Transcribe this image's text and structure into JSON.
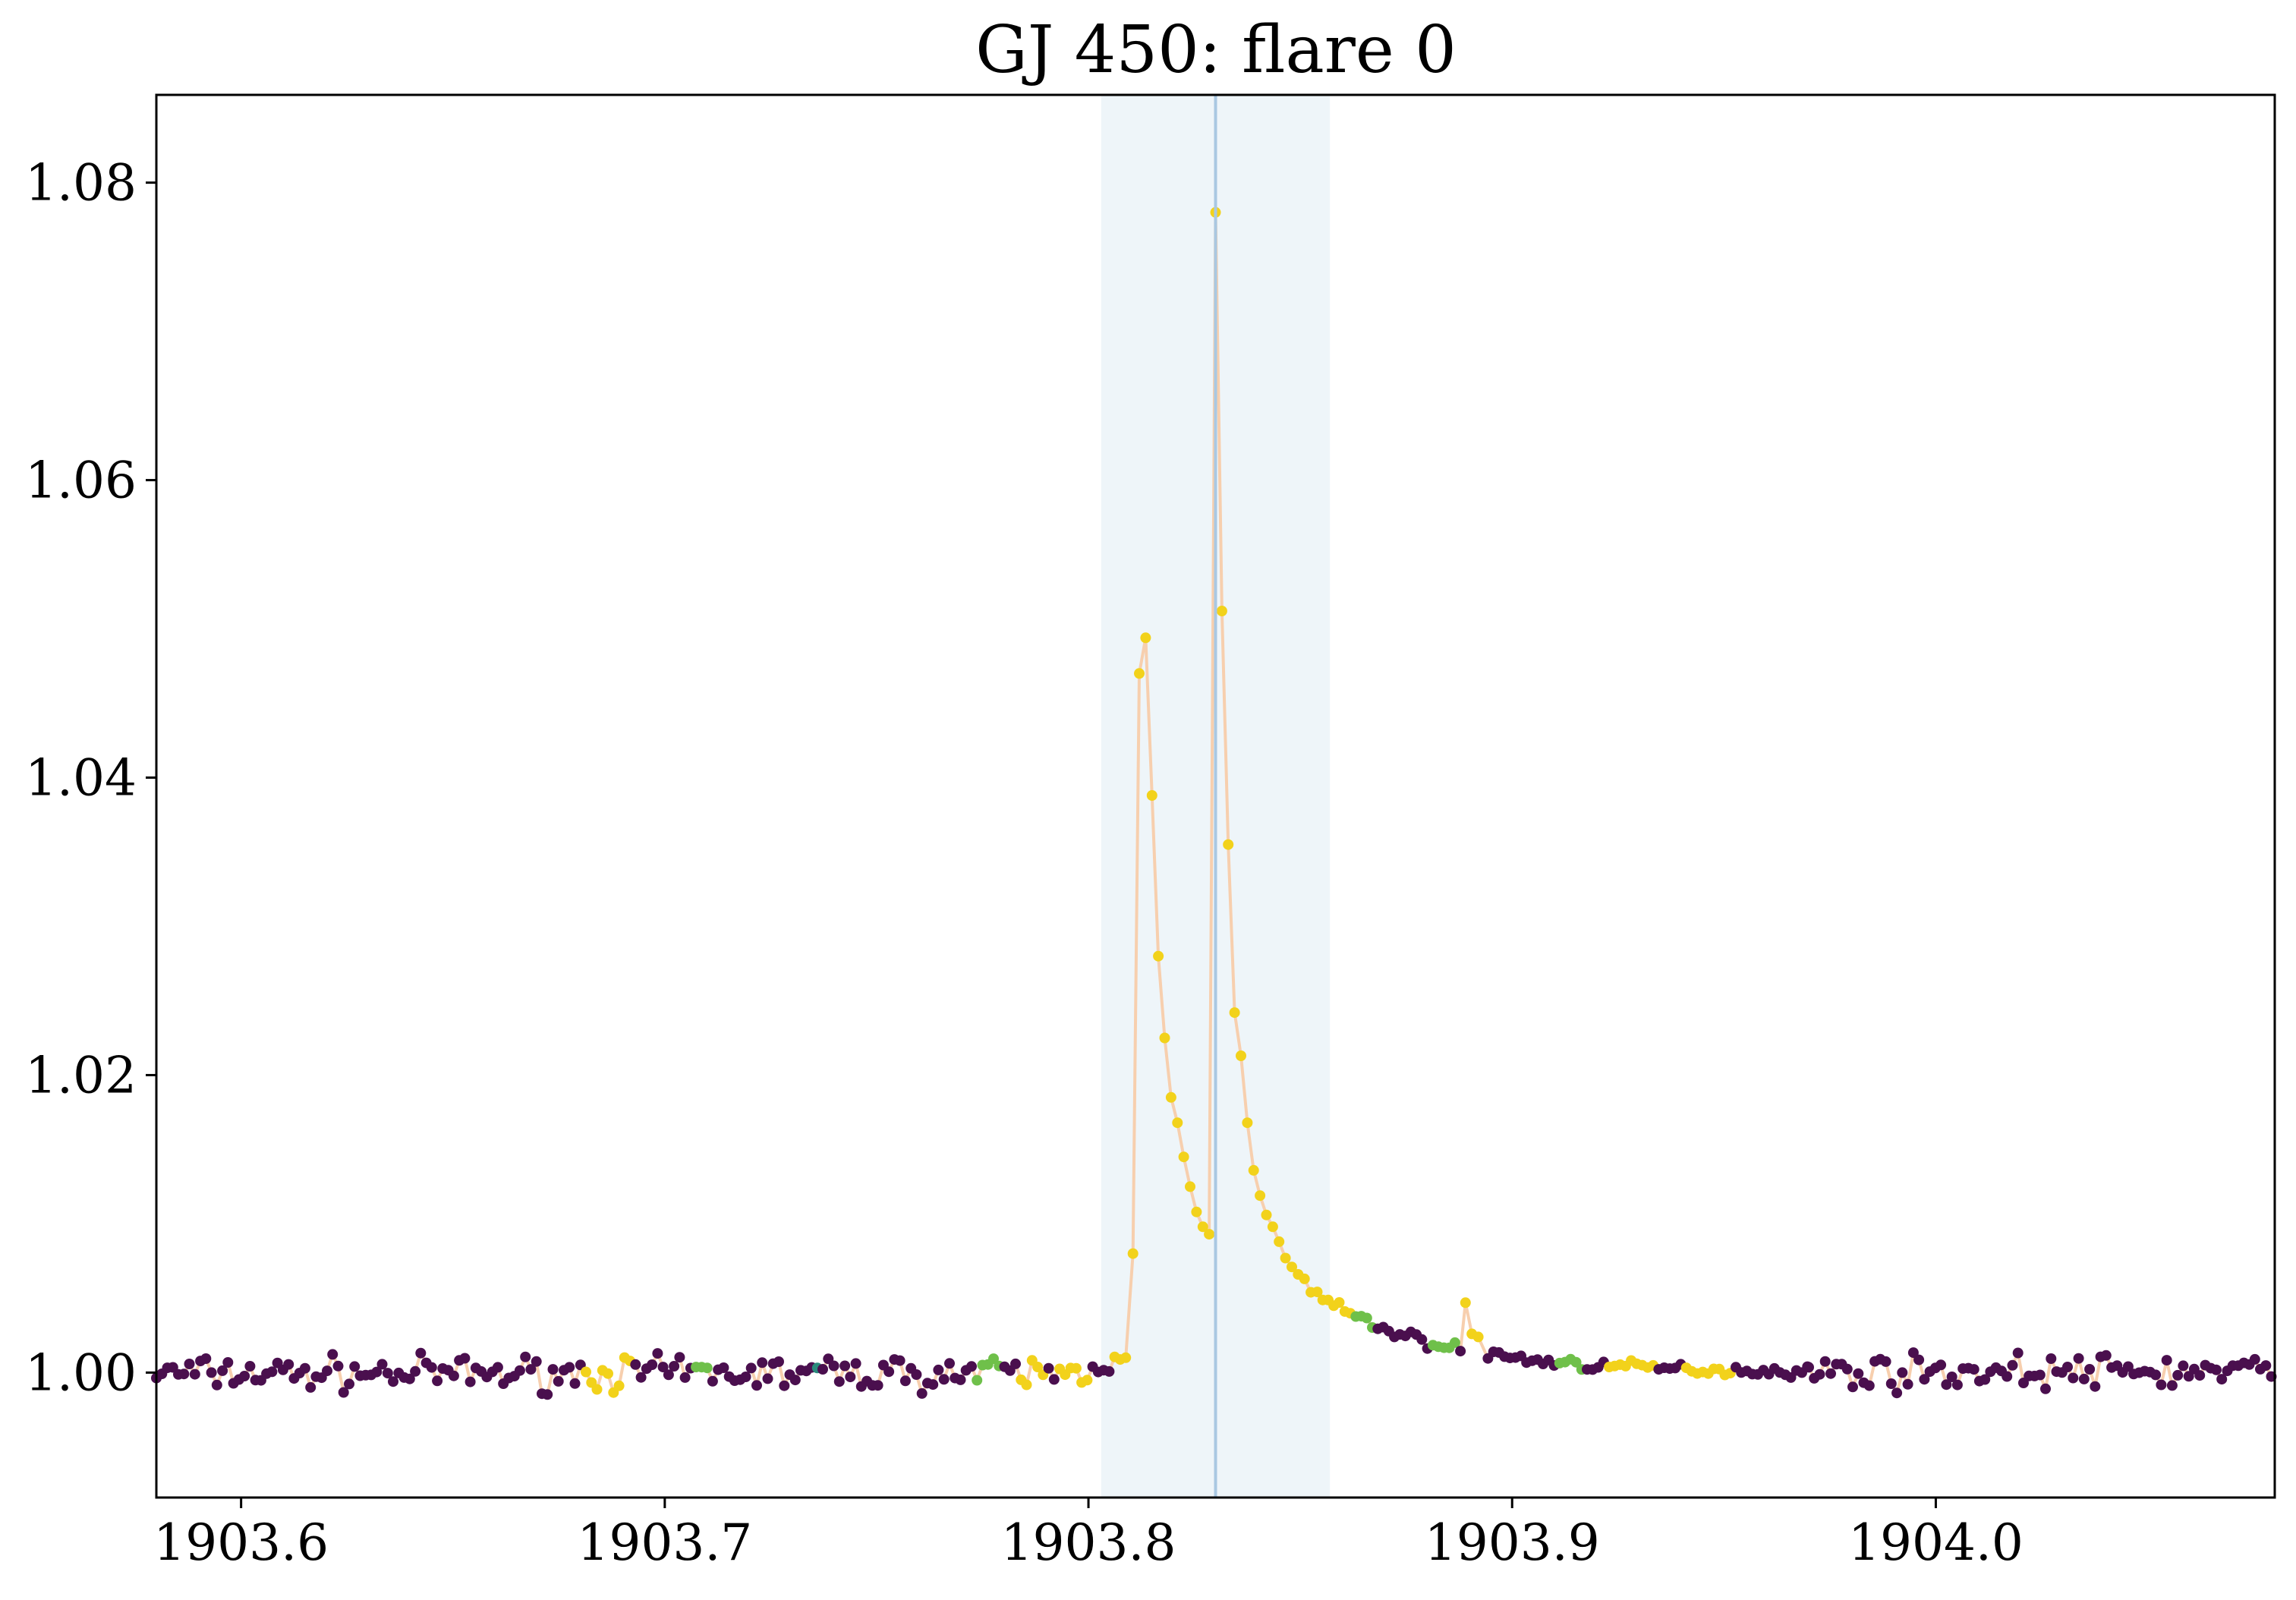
{
  "chart_data": {
    "type": "scatter",
    "title": "GJ 450: flare 0",
    "xlabel": "",
    "ylabel": "",
    "xlim": [
      1903.58,
      1904.08
    ],
    "ylim": [
      0.9916,
      1.0859
    ],
    "xticks": [
      {
        "value": 1903.6,
        "label": "1903.6"
      },
      {
        "value": 1903.7,
        "label": "1903.7"
      },
      {
        "value": 1903.8,
        "label": "1903.8"
      },
      {
        "value": 1903.9,
        "label": "1903.9"
      },
      {
        "value": 1904.0,
        "label": "1904.0"
      }
    ],
    "yticks": [
      {
        "value": 1.0,
        "label": "1.00"
      },
      {
        "value": 1.02,
        "label": "1.02"
      },
      {
        "value": 1.04,
        "label": "1.04"
      },
      {
        "value": 1.06,
        "label": "1.06"
      },
      {
        "value": 1.08,
        "label": "1.08"
      }
    ],
    "grid": false,
    "flare_window": [
      1903.803,
      1903.857
    ],
    "peak_marker_x": 1903.83,
    "colors": {
      "flare_window_fill": "#eef5f9",
      "peak_marker_line": "#a9c8e2",
      "connecting_line": "#f7cfae",
      "quiet_point": "#4a0f4e",
      "flare_point": "#f2d21b",
      "transition_point_teal": "#2a8a7c",
      "transition_point_green": "#6fc04a",
      "transition_point_blue": "#3b5a8f"
    },
    "flare_points": [
      {
        "x": 1903.8105,
        "y": 1.008
      },
      {
        "x": 1903.812,
        "y": 1.047
      },
      {
        "x": 1903.8135,
        "y": 1.0494
      },
      {
        "x": 1903.815,
        "y": 1.0388
      },
      {
        "x": 1903.8165,
        "y": 1.028
      },
      {
        "x": 1903.818,
        "y": 1.0225
      },
      {
        "x": 1903.8195,
        "y": 1.0185
      },
      {
        "x": 1903.821,
        "y": 1.0168
      },
      {
        "x": 1903.8225,
        "y": 1.0145
      },
      {
        "x": 1903.824,
        "y": 1.0125
      },
      {
        "x": 1903.8255,
        "y": 1.0108
      },
      {
        "x": 1903.827,
        "y": 1.0098
      },
      {
        "x": 1903.8285,
        "y": 1.0093
      },
      {
        "x": 1903.83,
        "y": 1.078
      },
      {
        "x": 1903.8315,
        "y": 1.0512
      },
      {
        "x": 1903.833,
        "y": 1.0355
      },
      {
        "x": 1903.8345,
        "y": 1.0242
      },
      {
        "x": 1903.836,
        "y": 1.0213
      },
      {
        "x": 1903.8375,
        "y": 1.0168
      },
      {
        "x": 1903.839,
        "y": 1.0136
      },
      {
        "x": 1903.8405,
        "y": 1.0119
      },
      {
        "x": 1903.842,
        "y": 1.0106
      },
      {
        "x": 1903.8435,
        "y": 1.0098
      },
      {
        "x": 1903.845,
        "y": 1.0088
      },
      {
        "x": 1903.8465,
        "y": 1.0077
      },
      {
        "x": 1903.848,
        "y": 1.0071
      },
      {
        "x": 1903.8495,
        "y": 1.0066
      },
      {
        "x": 1903.851,
        "y": 1.0063
      },
      {
        "x": 1903.8525,
        "y": 1.0054
      }
    ],
    "secondary_bump": [
      {
        "x": 1903.889,
        "y": 1.0047
      },
      {
        "x": 1903.8905,
        "y": 1.0026
      },
      {
        "x": 1903.892,
        "y": 1.0024
      }
    ]
  }
}
